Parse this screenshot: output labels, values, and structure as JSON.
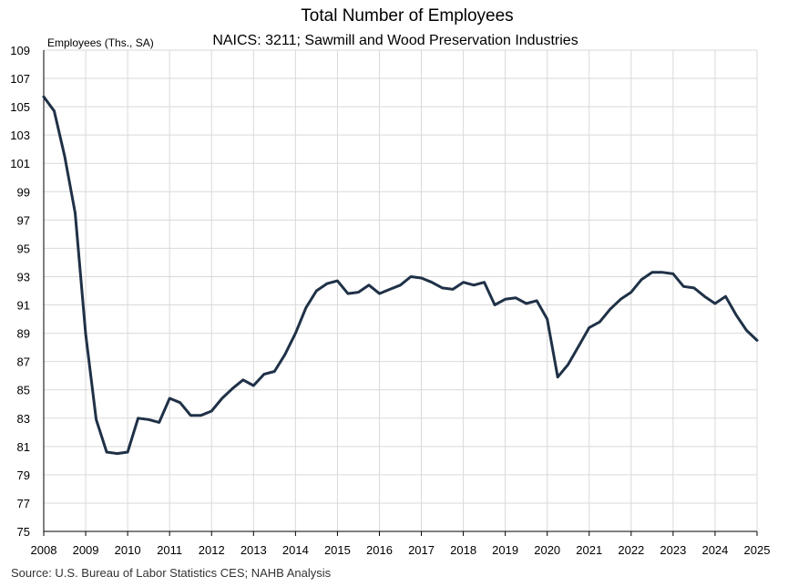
{
  "chart_data": {
    "type": "line",
    "title": "Total Number of Employees",
    "subtitle": "NAICS: 3211; Sawmill and Wood Preservation Industries",
    "ylabel": "Employees (Ths., SA)",
    "xlabel": "",
    "source": "Source: U.S. Bureau of Labor Statistics CES; NAHB Analysis",
    "ylim": [
      75,
      109
    ],
    "xlim": [
      2008,
      2025
    ],
    "yticks": [
      "75",
      "77",
      "79",
      "81",
      "83",
      "85",
      "87",
      "89",
      "91",
      "93",
      "95",
      "97",
      "99",
      "101",
      "103",
      "105",
      "107",
      "109"
    ],
    "xticks": [
      "2008",
      "2009",
      "2010",
      "2011",
      "2012",
      "2013",
      "2014",
      "2015",
      "2016",
      "2017",
      "2018",
      "2019",
      "2020",
      "2021",
      "2022",
      "2023",
      "2024",
      "2025"
    ],
    "grid": true,
    "color": "#1f3147",
    "series": [
      {
        "x": [
          2008.0,
          2008.25,
          2008.5,
          2008.75,
          2009.0,
          2009.25,
          2009.5,
          2009.75,
          2010.0,
          2010.25,
          2010.5,
          2010.75,
          2011.0,
          2011.25,
          2011.5,
          2011.75,
          2012.0,
          2012.25,
          2012.5,
          2012.75,
          2013.0,
          2013.25,
          2013.5,
          2013.75,
          2014.0,
          2014.25,
          2014.5,
          2014.75,
          2015.0,
          2015.25,
          2015.5,
          2015.75,
          2016.0,
          2016.25,
          2016.5,
          2016.75,
          2017.0,
          2017.25,
          2017.5,
          2017.75,
          2018.0,
          2018.25,
          2018.5,
          2018.75,
          2019.0,
          2019.25,
          2019.5,
          2019.75,
          2020.0,
          2020.25,
          2020.5,
          2020.75,
          2021.0,
          2021.25,
          2021.5,
          2021.75,
          2022.0,
          2022.25,
          2022.5,
          2022.75,
          2023.0,
          2023.25,
          2023.5,
          2023.75,
          2024.0,
          2024.25,
          2024.5,
          2024.75,
          2025.0
        ],
        "values": [
          105.7,
          104.7,
          101.5,
          97.5,
          88.9,
          82.9,
          80.6,
          80.5,
          80.6,
          83.0,
          82.9,
          82.7,
          84.4,
          84.1,
          83.2,
          83.2,
          83.5,
          84.4,
          85.1,
          85.7,
          85.3,
          86.1,
          86.3,
          87.5,
          89.0,
          90.8,
          92.0,
          92.5,
          92.7,
          91.8,
          91.9,
          92.4,
          91.8,
          92.1,
          92.4,
          93.0,
          92.9,
          92.6,
          92.2,
          92.1,
          92.6,
          92.4,
          92.6,
          91.0,
          91.4,
          91.5,
          91.1,
          91.3,
          90.0,
          85.9,
          86.8,
          88.1,
          89.4,
          89.8,
          90.7,
          91.4,
          91.9,
          92.8,
          93.3,
          93.3,
          93.2,
          92.3,
          92.2,
          91.6,
          91.1,
          91.6,
          90.3,
          89.2,
          88.5
        ]
      }
    ]
  }
}
